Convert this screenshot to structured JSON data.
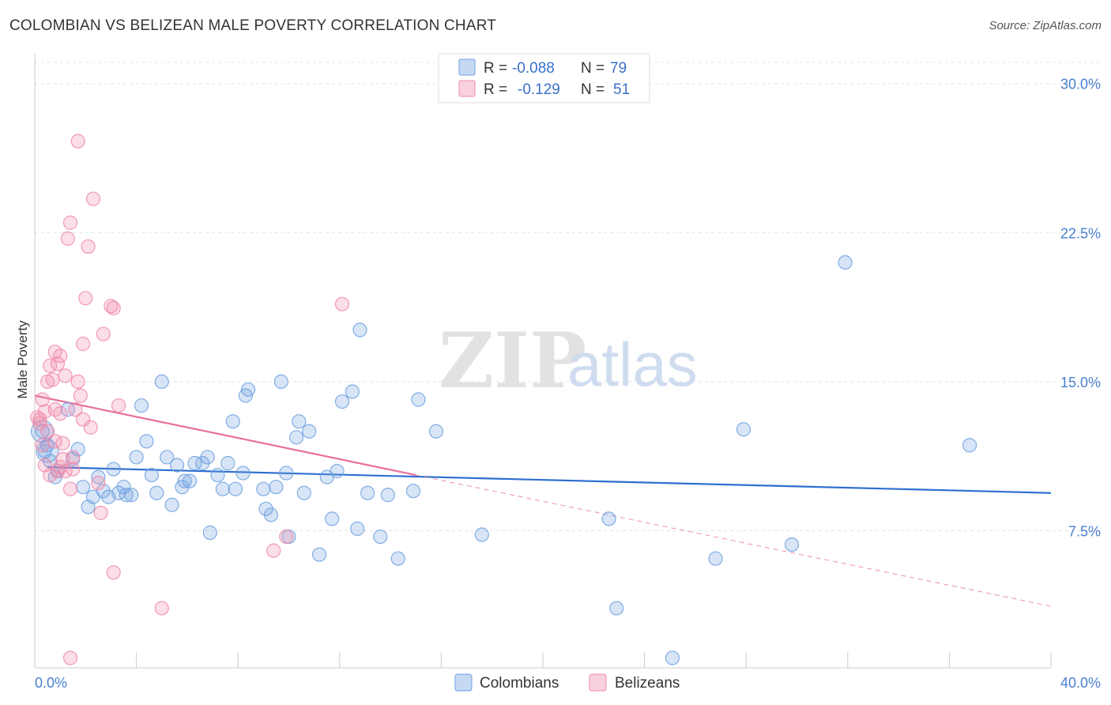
{
  "title": "COLOMBIAN VS BELIZEAN MALE POVERTY CORRELATION CHART",
  "source": "Source: ZipAtlas.com",
  "watermark": {
    "zip": "ZIP",
    "atlas": "atlas"
  },
  "legend_top": {
    "rows": [
      {
        "r_label": "R =",
        "r_value": "-0.088",
        "n_label": "N =",
        "n_value": "79",
        "color": "#6fa0e0"
      },
      {
        "r_label": "R =",
        "r_value": "-0.129",
        "n_label": "N =",
        "n_value": "51",
        "color": "#f08aaa"
      }
    ]
  },
  "legend_bottom": {
    "items": [
      {
        "label": "Colombians",
        "color": "#6fa0e0"
      },
      {
        "label": "Belizeans",
        "color": "#f08aaa"
      }
    ]
  },
  "chart_data": {
    "type": "scatter",
    "title": "COLOMBIAN VS BELIZEAN MALE POVERTY CORRELATION CHART",
    "ylabel": "Male Poverty",
    "xlim": [
      0,
      40
    ],
    "ylim": [
      0.6,
      31.5
    ],
    "x_tick_labels": [
      {
        "value": 0,
        "label": "0.0%"
      },
      {
        "value": 40,
        "label": "40.0%"
      }
    ],
    "y_ticks": [
      {
        "value": 7.5,
        "label": "7.5%"
      },
      {
        "value": 15.0,
        "label": "15.0%"
      },
      {
        "value": 22.5,
        "label": "22.5%"
      },
      {
        "value": 30.0,
        "label": "30.0%"
      }
    ],
    "grid": true,
    "series": [
      {
        "name": "Colombians",
        "color": "#6fa0e0",
        "trend": {
          "x": [
            0.5,
            40
          ],
          "y": [
            10.7,
            9.4
          ],
          "style": "solid"
        },
        "points": [
          [
            0.4,
            11.5
          ],
          [
            0.6,
            11.0
          ],
          [
            0.8,
            10.2
          ],
          [
            0.9,
            10.5
          ],
          [
            1.3,
            13.6
          ],
          [
            1.5,
            11.1
          ],
          [
            1.7,
            11.6
          ],
          [
            1.9,
            9.7
          ],
          [
            2.1,
            8.7
          ],
          [
            2.3,
            9.2
          ],
          [
            2.5,
            10.2
          ],
          [
            2.7,
            9.5
          ],
          [
            2.9,
            9.2
          ],
          [
            3.1,
            10.6
          ],
          [
            3.3,
            9.4
          ],
          [
            3.5,
            9.7
          ],
          [
            3.6,
            9.3
          ],
          [
            3.8,
            9.3
          ],
          [
            4.0,
            11.2
          ],
          [
            4.2,
            13.8
          ],
          [
            4.4,
            12.0
          ],
          [
            4.6,
            10.3
          ],
          [
            4.8,
            9.4
          ],
          [
            5.0,
            15.0
          ],
          [
            5.2,
            11.2
          ],
          [
            5.4,
            8.8
          ],
          [
            5.6,
            10.8
          ],
          [
            5.8,
            9.7
          ],
          [
            5.9,
            10.0
          ],
          [
            6.1,
            10.0
          ],
          [
            6.3,
            10.9
          ],
          [
            6.6,
            10.9
          ],
          [
            6.8,
            11.2
          ],
          [
            6.9,
            7.4
          ],
          [
            7.2,
            10.3
          ],
          [
            7.4,
            9.6
          ],
          [
            7.6,
            10.9
          ],
          [
            7.8,
            13.0
          ],
          [
            7.9,
            9.6
          ],
          [
            8.2,
            10.4
          ],
          [
            8.3,
            14.3
          ],
          [
            8.4,
            14.6
          ],
          [
            9.0,
            9.6
          ],
          [
            9.1,
            8.6
          ],
          [
            9.3,
            8.3
          ],
          [
            9.5,
            9.7
          ],
          [
            9.7,
            15.0
          ],
          [
            9.9,
            10.4
          ],
          [
            10.0,
            7.2
          ],
          [
            10.3,
            12.2
          ],
          [
            10.4,
            13.0
          ],
          [
            10.6,
            9.4
          ],
          [
            10.8,
            12.5
          ],
          [
            11.2,
            6.3
          ],
          [
            11.5,
            10.2
          ],
          [
            11.7,
            8.1
          ],
          [
            11.9,
            10.5
          ],
          [
            12.1,
            14.0
          ],
          [
            12.5,
            14.5
          ],
          [
            12.7,
            7.6
          ],
          [
            12.8,
            17.6
          ],
          [
            13.1,
            9.4
          ],
          [
            13.6,
            7.2
          ],
          [
            13.9,
            9.3
          ],
          [
            14.3,
            6.1
          ],
          [
            14.9,
            9.5
          ],
          [
            15.1,
            14.1
          ],
          [
            15.8,
            12.5
          ],
          [
            17.6,
            7.3
          ],
          [
            22.6,
            8.1
          ],
          [
            22.9,
            3.6
          ],
          [
            25.1,
            1.1
          ],
          [
            26.8,
            6.1
          ],
          [
            27.9,
            12.6
          ],
          [
            29.8,
            6.8
          ],
          [
            31.9,
            21.0
          ],
          [
            36.8,
            11.8
          ],
          [
            0.3,
            12.5
          ],
          [
            0.5,
            11.8
          ]
        ],
        "large_points": [
          [
            0.3,
            12.5
          ],
          [
            0.5,
            11.5
          ]
        ]
      },
      {
        "name": "Belizeans",
        "color": "#f08aaa",
        "trend": {
          "x": [
            0.0,
            15.0
          ],
          "y": [
            14.3,
            10.3
          ],
          "style": "solid",
          "extended": {
            "x": [
              15.0,
              40
            ],
            "y": [
              10.3,
              3.7
            ]
          }
        },
        "points": [
          [
            0.1,
            13.2
          ],
          [
            0.2,
            12.9
          ],
          [
            0.3,
            14.1
          ],
          [
            0.4,
            13.5
          ],
          [
            0.4,
            10.8
          ],
          [
            0.5,
            15.0
          ],
          [
            0.5,
            12.5
          ],
          [
            0.6,
            15.8
          ],
          [
            0.7,
            15.1
          ],
          [
            0.8,
            13.6
          ],
          [
            0.8,
            16.5
          ],
          [
            0.9,
            15.9
          ],
          [
            0.9,
            10.5
          ],
          [
            1.0,
            16.3
          ],
          [
            1.0,
            13.4
          ],
          [
            1.1,
            11.9
          ],
          [
            1.1,
            11.1
          ],
          [
            1.2,
            15.3
          ],
          [
            1.2,
            10.5
          ],
          [
            1.3,
            22.2
          ],
          [
            1.4,
            23.0
          ],
          [
            1.4,
            9.6
          ],
          [
            1.5,
            10.6
          ],
          [
            1.6,
            13.6
          ],
          [
            1.7,
            27.1
          ],
          [
            1.7,
            15.0
          ],
          [
            1.8,
            14.3
          ],
          [
            1.9,
            16.9
          ],
          [
            1.9,
            13.1
          ],
          [
            2.0,
            19.2
          ],
          [
            2.1,
            21.8
          ],
          [
            2.2,
            12.7
          ],
          [
            2.3,
            24.2
          ],
          [
            2.5,
            9.9
          ],
          [
            2.6,
            8.4
          ],
          [
            2.7,
            17.4
          ],
          [
            3.0,
            18.8
          ],
          [
            3.1,
            18.7
          ],
          [
            3.1,
            5.4
          ],
          [
            3.3,
            13.8
          ],
          [
            5.0,
            3.6
          ],
          [
            9.4,
            6.5
          ],
          [
            9.9,
            7.2
          ],
          [
            12.1,
            18.9
          ],
          [
            1.4,
            1.1
          ],
          [
            0.6,
            10.3
          ],
          [
            0.3,
            11.8
          ],
          [
            0.2,
            13.1
          ],
          [
            1.0,
            10.7
          ],
          [
            1.5,
            11.2
          ],
          [
            0.8,
            12.0
          ]
        ]
      }
    ]
  }
}
